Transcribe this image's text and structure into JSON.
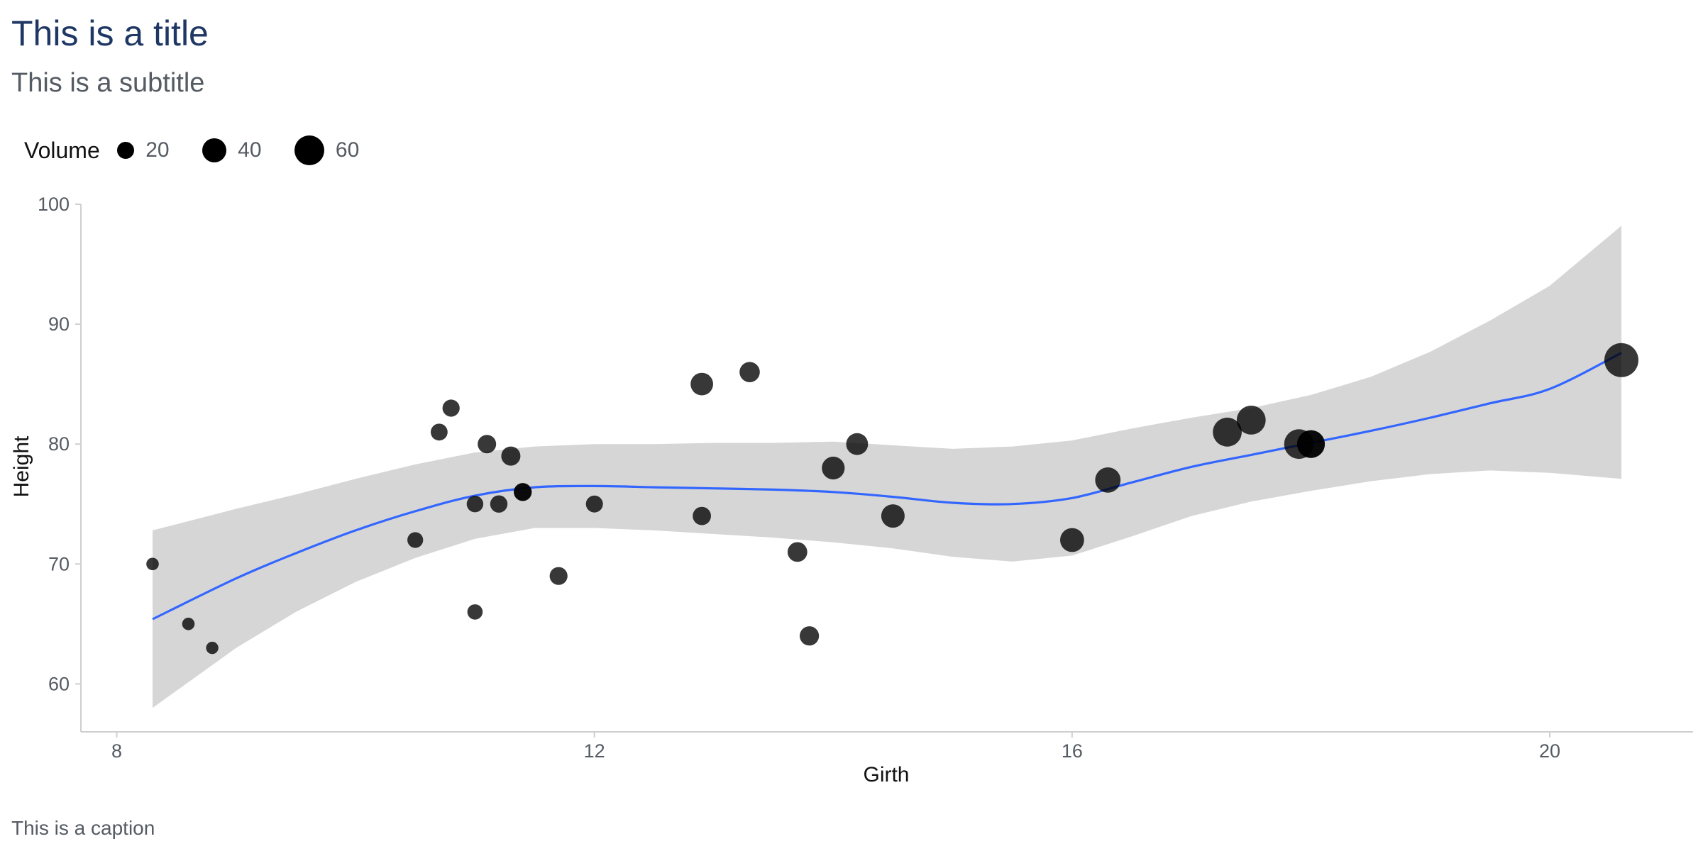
{
  "title": "This is a title",
  "subtitle": "This is a subtitle",
  "caption": "This is a caption",
  "colors": {
    "title": "#1f3764",
    "text": "#555b63",
    "points": "#000000",
    "smooth_line": "#3366ff",
    "ribbon": "#d6d6d6",
    "axis": "#cfcfcf"
  },
  "chart_data": {
    "type": "scatter",
    "title": "This is a title",
    "subtitle": "This is a subtitle",
    "caption": "This is a caption",
    "xlabel": "Girth",
    "ylabel": "Height",
    "xlim": [
      7.7,
      21.2
    ],
    "ylim": [
      56,
      100
    ],
    "x_ticks": [
      8,
      12,
      16,
      20
    ],
    "y_ticks": [
      60,
      70,
      80,
      90,
      100
    ],
    "grid": false,
    "legend": {
      "title": "Volume",
      "placement": "top-left",
      "entries": [
        {
          "label": "20",
          "value": 20
        },
        {
          "label": "40",
          "value": 40
        },
        {
          "label": "60",
          "value": 60
        }
      ]
    },
    "size_variable": "Volume",
    "points": [
      {
        "x": 8.3,
        "y": 70,
        "size": 10.3
      },
      {
        "x": 8.6,
        "y": 65,
        "size": 10.3
      },
      {
        "x": 8.8,
        "y": 63,
        "size": 10.2
      },
      {
        "x": 10.5,
        "y": 72,
        "size": 16.4
      },
      {
        "x": 10.7,
        "y": 81,
        "size": 18.8
      },
      {
        "x": 10.8,
        "y": 83,
        "size": 19.7
      },
      {
        "x": 11.0,
        "y": 66,
        "size": 15.6
      },
      {
        "x": 11.0,
        "y": 75,
        "size": 18.2
      },
      {
        "x": 11.1,
        "y": 80,
        "size": 22.6
      },
      {
        "x": 11.2,
        "y": 75,
        "size": 19.9
      },
      {
        "x": 11.3,
        "y": 79,
        "size": 24.2
      },
      {
        "x": 11.4,
        "y": 76,
        "size": 21.0
      },
      {
        "x": 11.4,
        "y": 76,
        "size": 21.4
      },
      {
        "x": 11.7,
        "y": 69,
        "size": 21.3
      },
      {
        "x": 12.0,
        "y": 75,
        "size": 19.1
      },
      {
        "x": 12.9,
        "y": 74,
        "size": 22.2
      },
      {
        "x": 12.9,
        "y": 85,
        "size": 33.8
      },
      {
        "x": 13.3,
        "y": 86,
        "size": 27.4
      },
      {
        "x": 13.7,
        "y": 71,
        "size": 25.7
      },
      {
        "x": 13.8,
        "y": 64,
        "size": 24.9
      },
      {
        "x": 14.0,
        "y": 78,
        "size": 34.5
      },
      {
        "x": 14.2,
        "y": 80,
        "size": 31.7
      },
      {
        "x": 14.5,
        "y": 74,
        "size": 36.3
      },
      {
        "x": 16.0,
        "y": 72,
        "size": 38.3
      },
      {
        "x": 16.3,
        "y": 77,
        "size": 42.6
      },
      {
        "x": 17.3,
        "y": 81,
        "size": 55.4
      },
      {
        "x": 17.5,
        "y": 82,
        "size": 55.7
      },
      {
        "x": 17.9,
        "y": 80,
        "size": 58.3
      },
      {
        "x": 18.0,
        "y": 80,
        "size": 51.5
      },
      {
        "x": 18.0,
        "y": 80,
        "size": 51.0
      },
      {
        "x": 20.6,
        "y": 87,
        "size": 77.0
      }
    ],
    "smooth": {
      "method": "loess",
      "x": [
        8.3,
        9.0,
        9.5,
        10.0,
        10.5,
        11.0,
        11.5,
        12.0,
        12.5,
        13.0,
        13.5,
        14.0,
        14.5,
        15.0,
        15.5,
        16.0,
        16.5,
        17.0,
        17.5,
        18.0,
        18.5,
        19.0,
        19.5,
        20.0,
        20.6
      ],
      "y": [
        65.4,
        68.8,
        70.9,
        72.8,
        74.4,
        75.7,
        76.4,
        76.5,
        76.4,
        76.3,
        76.2,
        76.0,
        75.6,
        75.1,
        75.0,
        75.5,
        76.8,
        78.1,
        79.1,
        80.1,
        81.1,
        82.2,
        83.4,
        84.6,
        87.6
      ],
      "lower": [
        58.0,
        63.0,
        66.0,
        68.5,
        70.5,
        72.1,
        73.0,
        73.0,
        72.8,
        72.5,
        72.2,
        71.8,
        71.3,
        70.6,
        70.2,
        70.7,
        72.3,
        74.0,
        75.2,
        76.1,
        76.9,
        77.5,
        77.8,
        77.6,
        77.1
      ],
      "upper": [
        72.8,
        74.6,
        75.8,
        77.1,
        78.3,
        79.3,
        79.8,
        80.0,
        80.0,
        80.1,
        80.1,
        80.2,
        79.9,
        79.6,
        79.8,
        80.3,
        81.3,
        82.2,
        83.0,
        84.1,
        85.6,
        87.7,
        90.3,
        93.2,
        98.2
      ]
    }
  }
}
